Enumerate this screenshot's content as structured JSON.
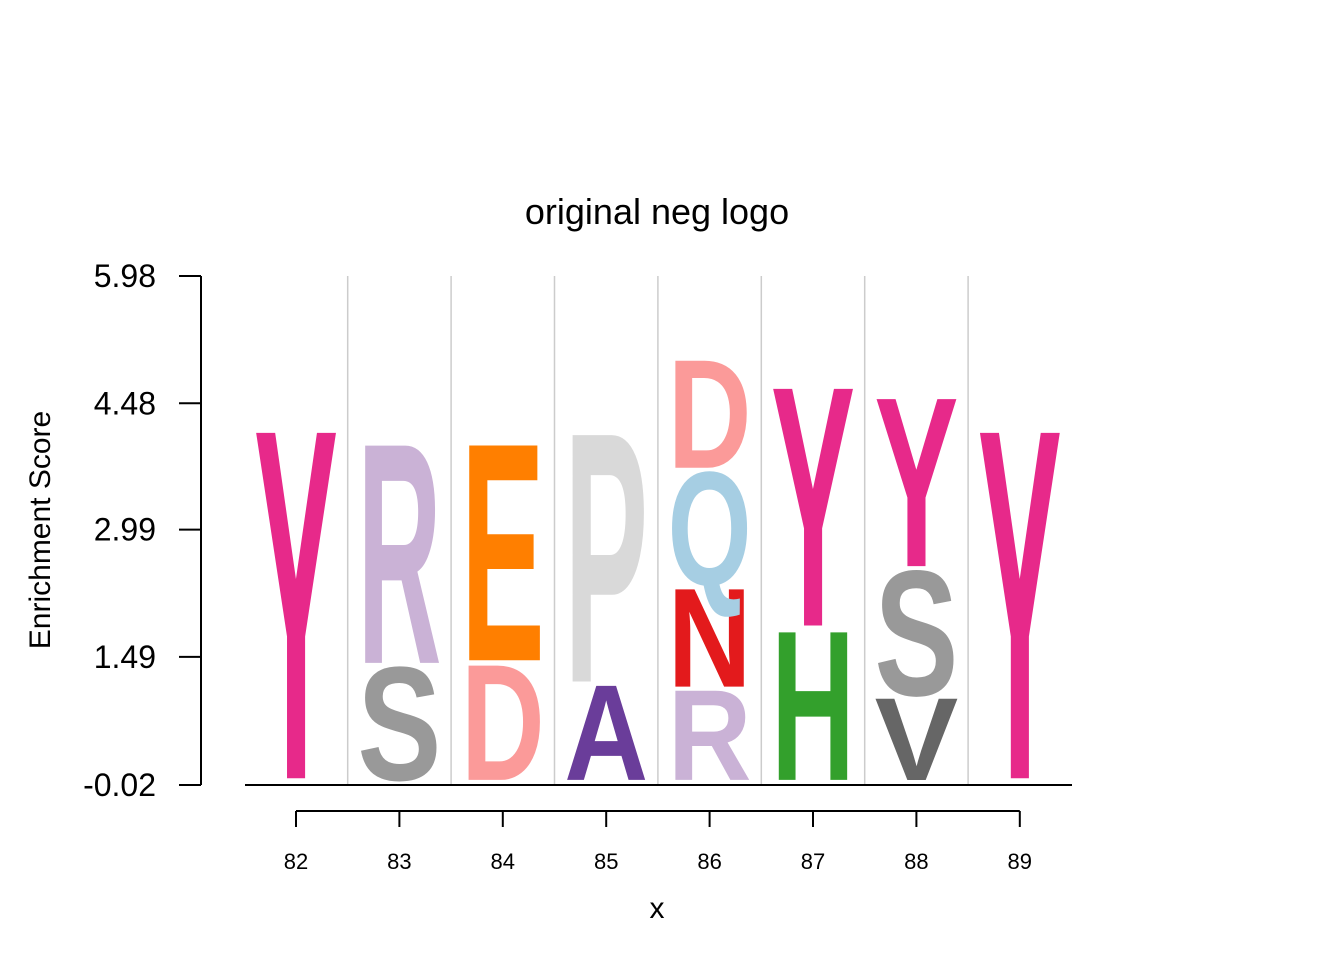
{
  "chart_data": {
    "type": "sequence-logo",
    "title": "original neg logo",
    "xlabel": "x",
    "ylabel": "Enrichment Score",
    "ylim": [
      -0.02,
      5.98
    ],
    "yticks": [
      "5.98",
      "4.48",
      "2.99",
      "1.49",
      "-0.02"
    ],
    "ytick_values": [
      5.98,
      4.48,
      2.99,
      1.49,
      -0.02
    ],
    "positions": [
      "82",
      "83",
      "84",
      "85",
      "86",
      "87",
      "88",
      "89"
    ],
    "grid": "vertical-separators",
    "stacks": [
      [
        {
          "letter": "Y",
          "low": 0.06,
          "high": 4.32,
          "color": "#e7298a"
        }
      ],
      [
        {
          "letter": "S",
          "low": 0.04,
          "high": 1.42,
          "color": "#999999"
        },
        {
          "letter": "R",
          "low": 1.42,
          "high": 4.1,
          "color": "#cab2d6"
        }
      ],
      [
        {
          "letter": "D",
          "low": 0.04,
          "high": 1.45,
          "color": "#fb9a99"
        },
        {
          "letter": "E",
          "low": 1.45,
          "high": 4.1,
          "color": "#ff7f00"
        }
      ],
      [
        {
          "letter": "A",
          "low": 0.04,
          "high": 1.2,
          "color": "#6a3d9a"
        },
        {
          "letter": "P",
          "low": 1.2,
          "high": 4.24,
          "color": "#d9d9d9"
        }
      ],
      [
        {
          "letter": "R",
          "low": 0.04,
          "high": 1.14,
          "color": "#cab2d6"
        },
        {
          "letter": "N",
          "low": 1.14,
          "high": 2.34,
          "color": "#e31a1c"
        },
        {
          "letter": "Q",
          "low": 2.34,
          "high": 3.72,
          "color": "#a6cee3"
        },
        {
          "letter": "D",
          "low": 3.72,
          "high": 5.04,
          "color": "#fb9a99"
        }
      ],
      [
        {
          "letter": "H",
          "low": 0.04,
          "high": 1.86,
          "color": "#33a02c"
        },
        {
          "letter": "Y",
          "low": 1.86,
          "high": 4.78,
          "color": "#e7298a"
        }
      ],
      [
        {
          "letter": "V",
          "low": 0.04,
          "high": 1.04,
          "color": "#666666"
        },
        {
          "letter": "S",
          "low": 1.04,
          "high": 2.56,
          "color": "#999999"
        },
        {
          "letter": "Y",
          "low": 2.56,
          "high": 4.62,
          "color": "#e7298a"
        }
      ],
      [
        {
          "letter": "Y",
          "low": 0.06,
          "high": 4.32,
          "color": "#e7298a"
        }
      ]
    ]
  }
}
